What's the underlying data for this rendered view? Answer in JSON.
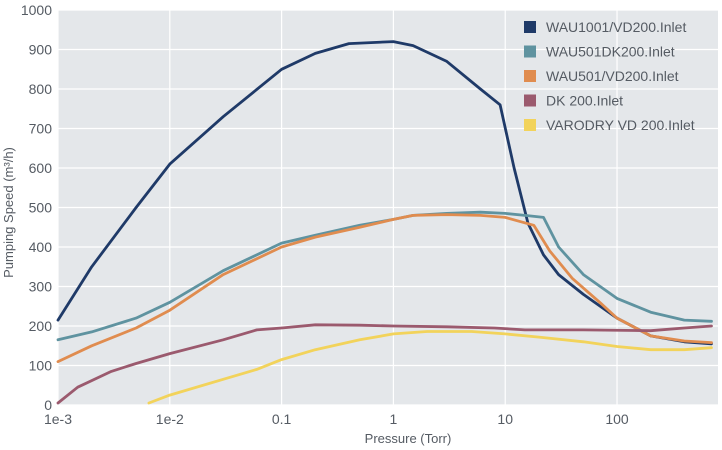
{
  "chart_data": {
    "type": "line",
    "title": "",
    "xlabel": "Pressure (Torr)",
    "ylabel": "Pumping Speed (m³/h)",
    "x_scale": "log",
    "xlim": [
      0.001,
      800
    ],
    "ylim": [
      0,
      1000
    ],
    "x_ticks": [
      0.001,
      0.01,
      0.1,
      1,
      10,
      100
    ],
    "x_tick_labels": [
      "1e-3",
      "1e-2",
      "0.1",
      "1",
      "10",
      "100"
    ],
    "y_ticks": [
      0,
      100,
      200,
      300,
      400,
      500,
      600,
      700,
      800,
      900,
      1000
    ],
    "y_tick_labels": [
      "0",
      "100",
      "200",
      "300",
      "400",
      "500",
      "600",
      "700",
      "800",
      "900",
      "1000"
    ],
    "grid": true,
    "legend_position": "top-right",
    "plot_background": "#e4e7ea",
    "grid_color": "#ffffff",
    "series": [
      {
        "name": "WAU1001/VD200.Inlet",
        "color": "#1f3a68",
        "points": [
          [
            0.001,
            215
          ],
          [
            0.002,
            350
          ],
          [
            0.005,
            500
          ],
          [
            0.01,
            610
          ],
          [
            0.03,
            730
          ],
          [
            0.1,
            850
          ],
          [
            0.2,
            890
          ],
          [
            0.4,
            915
          ],
          [
            1.0,
            920
          ],
          [
            1.5,
            910
          ],
          [
            3,
            870
          ],
          [
            6,
            800
          ],
          [
            9,
            760
          ],
          [
            12,
            600
          ],
          [
            16,
            460
          ],
          [
            22,
            380
          ],
          [
            30,
            330
          ],
          [
            50,
            280
          ],
          [
            100,
            220
          ],
          [
            200,
            175
          ],
          [
            400,
            160
          ],
          [
            700,
            155
          ]
        ]
      },
      {
        "name": "WAU501DK200.Inlet",
        "color": "#5f93a0",
        "points": [
          [
            0.001,
            165
          ],
          [
            0.002,
            185
          ],
          [
            0.005,
            220
          ],
          [
            0.01,
            260
          ],
          [
            0.03,
            340
          ],
          [
            0.1,
            410
          ],
          [
            0.2,
            430
          ],
          [
            0.5,
            455
          ],
          [
            1.0,
            470
          ],
          [
            1.5,
            480
          ],
          [
            3,
            485
          ],
          [
            6,
            488
          ],
          [
            10,
            485
          ],
          [
            15,
            480
          ],
          [
            22,
            475
          ],
          [
            30,
            400
          ],
          [
            50,
            330
          ],
          [
            100,
            270
          ],
          [
            200,
            235
          ],
          [
            400,
            215
          ],
          [
            700,
            212
          ]
        ]
      },
      {
        "name": "WAU501/VD200.Inlet",
        "color": "#e08c4f",
        "points": [
          [
            0.001,
            110
          ],
          [
            0.002,
            150
          ],
          [
            0.005,
            195
          ],
          [
            0.01,
            240
          ],
          [
            0.03,
            330
          ],
          [
            0.1,
            400
          ],
          [
            0.2,
            425
          ],
          [
            0.5,
            450
          ],
          [
            1.0,
            470
          ],
          [
            1.5,
            480
          ],
          [
            3,
            482
          ],
          [
            6,
            480
          ],
          [
            10,
            475
          ],
          [
            18,
            455
          ],
          [
            25,
            390
          ],
          [
            40,
            320
          ],
          [
            70,
            260
          ],
          [
            100,
            220
          ],
          [
            200,
            175
          ],
          [
            400,
            162
          ],
          [
            700,
            158
          ]
        ]
      },
      {
        "name": "DK 200.Inlet",
        "color": "#9b5a6e",
        "points": [
          [
            0.001,
            5
          ],
          [
            0.0015,
            45
          ],
          [
            0.003,
            85
          ],
          [
            0.005,
            105
          ],
          [
            0.01,
            130
          ],
          [
            0.03,
            165
          ],
          [
            0.06,
            190
          ],
          [
            0.1,
            195
          ],
          [
            0.2,
            203
          ],
          [
            0.5,
            202
          ],
          [
            1.0,
            200
          ],
          [
            3,
            198
          ],
          [
            8,
            195
          ],
          [
            15,
            190
          ],
          [
            50,
            190
          ],
          [
            200,
            188
          ],
          [
            400,
            195
          ],
          [
            700,
            200
          ]
        ]
      },
      {
        "name": "VARODRY VD 200.Inlet",
        "color": "#f2d35b",
        "points": [
          [
            0.0065,
            5
          ],
          [
            0.01,
            25
          ],
          [
            0.03,
            65
          ],
          [
            0.06,
            90
          ],
          [
            0.1,
            115
          ],
          [
            0.2,
            140
          ],
          [
            0.5,
            165
          ],
          [
            1.0,
            180
          ],
          [
            2,
            186
          ],
          [
            5,
            186
          ],
          [
            10,
            180
          ],
          [
            20,
            172
          ],
          [
            50,
            160
          ],
          [
            100,
            148
          ],
          [
            200,
            140
          ],
          [
            400,
            140
          ],
          [
            700,
            145
          ]
        ]
      }
    ]
  }
}
